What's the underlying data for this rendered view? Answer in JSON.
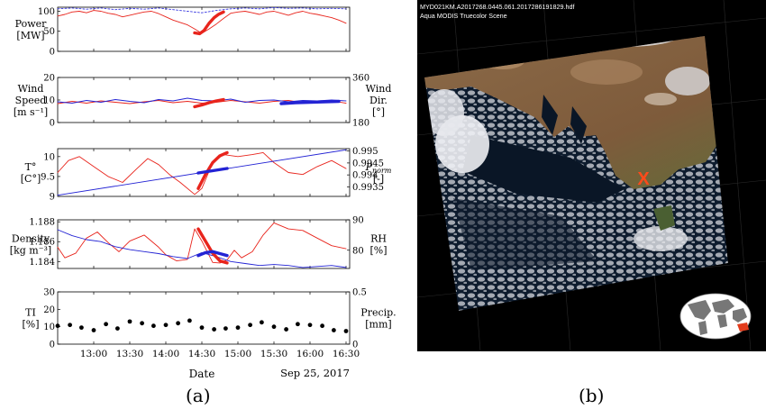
{
  "figure": {
    "caption_a": "(a)",
    "caption_b": "(b)"
  },
  "satellite": {
    "header_line1": "MYD021KM.A2017268.0445.061.2017286191829.hdf",
    "header_line2": "Aqua MODIS Truecolor Scene",
    "marker_label": "X",
    "colors": {
      "background": "#000000",
      "ocean": "#0a1626",
      "land": "#7a5a3c",
      "marker": "#ff4a1a"
    }
  },
  "chart_data": [
    {
      "type": "line",
      "id": "power",
      "ylabel": [
        "Power",
        "[MW]"
      ],
      "ylim": [
        0,
        110
      ],
      "yticks": [
        "0",
        "50",
        "100"
      ],
      "series": [
        {
          "style": "red",
          "x": [
            12.5,
            12.6,
            12.7,
            12.8,
            12.9,
            13,
            13.1,
            13.2,
            13.3,
            13.4,
            13.5,
            13.6,
            13.7,
            13.8,
            13.9,
            14,
            14.1,
            14.2,
            14.3,
            14.4,
            14.5,
            14.6,
            14.7,
            14.8,
            14.9,
            15,
            15.1,
            15.2,
            15.3,
            15.4,
            15.5,
            15.6,
            15.7,
            15.8,
            15.9,
            16,
            16.1,
            16.2,
            16.3,
            16.4,
            16.5
          ],
          "values": [
            88,
            92,
            98,
            100,
            96,
            102,
            100,
            95,
            92,
            86,
            90,
            94,
            98,
            100,
            94,
            86,
            78,
            72,
            66,
            56,
            45,
            56,
            68,
            82,
            95,
            98,
            100,
            96,
            92,
            98,
            100,
            95,
            90,
            96,
            100,
            95,
            92,
            88,
            84,
            78,
            70
          ]
        },
        {
          "style": "red-bold",
          "x": [
            14.4,
            14.47,
            14.53,
            14.6,
            14.67,
            14.73,
            14.8
          ],
          "values": [
            46,
            44,
            52,
            70,
            84,
            92,
            98
          ]
        },
        {
          "style": "blue-dotted",
          "x": [
            12.5,
            12.7,
            12.9,
            13.1,
            13.3,
            13.5,
            13.7,
            13.9,
            14.1,
            14.3,
            14.5,
            14.7,
            14.9,
            15.1,
            15.3,
            15.5,
            15.7,
            15.9,
            16.1,
            16.3,
            16.5
          ],
          "values": [
            106,
            108,
            105,
            108,
            104,
            107,
            105,
            108,
            104,
            100,
            96,
            102,
            106,
            108,
            106,
            109,
            107,
            108,
            106,
            107,
            106
          ]
        }
      ]
    },
    {
      "type": "line",
      "id": "wind",
      "ylabel": [
        "Wind",
        "Speed",
        "[m s⁻¹]"
      ],
      "ylabel_right": [
        "Wind",
        "Dir.",
        "[°]"
      ],
      "ylim": [
        0,
        20
      ],
      "ylim_right": [
        180,
        360
      ],
      "yticks": [
        "0",
        "10",
        "20"
      ],
      "yticks_right": [
        "180",
        "360"
      ],
      "series": [
        {
          "style": "red",
          "x": [
            12.5,
            12.7,
            12.9,
            13.1,
            13.3,
            13.5,
            13.7,
            13.9,
            14.1,
            14.3,
            14.5,
            14.7,
            14.9,
            15.1,
            15.3,
            15.5,
            15.7,
            15.9,
            16.1,
            16.3,
            16.5
          ],
          "values": [
            8.4,
            9.4,
            8.6,
            9.6,
            9.0,
            8.4,
            9.2,
            9.8,
            8.8,
            9.4,
            8.6,
            9.0,
            9.8,
            9.2,
            8.6,
            9.4,
            9.8,
            8.8,
            9.2,
            9.6,
            8.6
          ]
        },
        {
          "style": "blue",
          "x": [
            12.5,
            12.7,
            12.9,
            13.1,
            13.3,
            13.5,
            13.7,
            13.9,
            14.1,
            14.3,
            14.5,
            14.7,
            14.9,
            15.1,
            15.3,
            15.5,
            15.7,
            15.9,
            16.1,
            16.3,
            16.5
          ],
          "values": [
            9.2,
            8.6,
            9.8,
            9.0,
            10.2,
            9.4,
            8.8,
            10.2,
            9.6,
            10.8,
            9.8,
            9.6,
            10.4,
            9.0,
            9.8,
            10.0,
            9.2,
            9.8,
            9.6,
            10.0,
            9.6
          ]
        },
        {
          "style": "red-bold",
          "x": [
            14.4,
            14.5,
            14.6,
            14.7,
            14.8
          ],
          "values": [
            7.0,
            7.8,
            8.8,
            9.6,
            10.2
          ]
        },
        {
          "style": "blue-bold",
          "x": [
            15.6,
            15.8,
            16.0,
            16.2,
            16.4
          ],
          "values": [
            8.4,
            8.8,
            9.0,
            9.2,
            9.4
          ]
        }
      ]
    },
    {
      "type": "line",
      "id": "temperature",
      "ylabel": [
        "T°",
        "[C°]"
      ],
      "ylabel_right": [
        "P_norm",
        "[-]"
      ],
      "ylim": [
        9,
        10.2
      ],
      "ylim_right": [
        0.9931,
        0.9951
      ],
      "yticks": [
        "9",
        "9.5",
        "10"
      ],
      "yticks_right": [
        "0.9935",
        "0.994",
        "0.9945",
        "0.995"
      ],
      "series": [
        {
          "style": "red",
          "x": [
            12.5,
            12.65,
            12.8,
            13.0,
            13.2,
            13.4,
            13.6,
            13.75,
            13.9,
            14.05,
            14.2,
            14.4,
            14.5,
            14.65,
            14.8,
            15.0,
            15.2,
            15.35,
            15.5,
            15.7,
            15.9,
            16.1,
            16.3,
            16.5
          ],
          "values": [
            9.6,
            9.9,
            10.0,
            9.75,
            9.5,
            9.35,
            9.7,
            9.95,
            9.8,
            9.55,
            9.35,
            9.05,
            9.2,
            9.85,
            10.05,
            10.0,
            10.05,
            10.1,
            9.85,
            9.6,
            9.55,
            9.75,
            9.9,
            9.7
          ]
        },
        {
          "style": "red-bold",
          "x": [
            14.45,
            14.55,
            14.65,
            14.75,
            14.85
          ],
          "values": [
            9.2,
            9.55,
            9.85,
            10.02,
            10.1
          ]
        },
        {
          "style": "blue",
          "x": [
            12.5,
            16.5
          ],
          "values_right": [
            0.99315,
            0.99505
          ]
        },
        {
          "style": "blue-bold",
          "x": [
            14.45,
            14.85
          ],
          "values_right": [
            0.99408,
            0.99427
          ]
        }
      ]
    },
    {
      "type": "line",
      "id": "density",
      "ylabel": [
        "Density",
        "[kg m⁻³]"
      ],
      "ylabel_right": [
        "RH",
        "[%]"
      ],
      "ylim": [
        1.1833,
        1.1882
      ],
      "ylim_right": [
        74,
        90
      ],
      "yticks": [
        "1.184",
        "1.186",
        "1.188"
      ],
      "yticks_right": [
        "80",
        "90"
      ],
      "series": [
        {
          "style": "red",
          "x": [
            12.5,
            12.6,
            12.75,
            12.9,
            13.05,
            13.2,
            13.35,
            13.5,
            13.7,
            13.9,
            14.0,
            14.15,
            14.3,
            14.4,
            14.5,
            14.65,
            14.75,
            14.85,
            14.95,
            15.05,
            15.2,
            15.35,
            15.5,
            15.7,
            15.9,
            16.1,
            16.3,
            16.5
          ],
          "values_right": [
            81,
            77.5,
            79,
            84,
            86,
            82.5,
            79.5,
            83,
            85,
            81,
            78.5,
            76.5,
            77,
            87,
            83,
            76,
            75.8,
            76.8,
            80,
            77.5,
            79.5,
            85,
            89,
            87,
            86.5,
            84,
            81.5,
            80.5
          ]
        },
        {
          "style": "blue",
          "x": [
            12.5,
            12.7,
            12.9,
            13.1,
            13.3,
            13.5,
            13.7,
            13.9,
            14.1,
            14.3,
            14.5,
            14.7,
            14.9,
            15.1,
            15.3,
            15.5,
            15.7,
            15.9,
            16.1,
            16.3,
            16.5
          ],
          "values": [
            1.1872,
            1.1866,
            1.1862,
            1.186,
            1.1855,
            1.1852,
            1.185,
            1.1848,
            1.1845,
            1.1843,
            1.1849,
            1.1845,
            1.184,
            1.1838,
            1.1836,
            1.1837,
            1.1836,
            1.1834,
            1.1835,
            1.1836,
            1.1834
          ]
        },
        {
          "style": "red-bold",
          "x": [
            14.45,
            14.55,
            14.65,
            14.75,
            14.85
          ],
          "values_right": [
            87,
            83,
            79,
            76.5,
            75.8
          ]
        },
        {
          "style": "blue-bold",
          "x": [
            14.45,
            14.55,
            14.65,
            14.75,
            14.85
          ],
          "values": [
            1.1846,
            1.1849,
            1.185,
            1.1848,
            1.1846
          ]
        }
      ]
    },
    {
      "type": "scatter",
      "id": "ti",
      "ylabel": [
        "TI",
        "[%]"
      ],
      "ylabel_right": [
        "Precip.",
        "[mm]"
      ],
      "ylim": [
        0,
        30
      ],
      "ylim_right": [
        0,
        0.5
      ],
      "yticks": [
        "0",
        "10",
        "20",
        "30"
      ],
      "yticks_right": [
        "0",
        "0.5"
      ],
      "x": [
        12.5,
        12.67,
        12.83,
        13.0,
        13.17,
        13.33,
        13.5,
        13.67,
        13.83,
        14.0,
        14.17,
        14.33,
        14.5,
        14.67,
        14.83,
        15.0,
        15.17,
        15.33,
        15.5,
        15.67,
        15.83,
        16.0,
        16.17,
        16.33,
        16.5
      ],
      "values": [
        10.5,
        11.0,
        9.5,
        8.0,
        11.5,
        9.0,
        13.0,
        12.0,
        10.5,
        11.0,
        12.0,
        13.5,
        9.5,
        8.5,
        9.0,
        9.5,
        11.0,
        12.5,
        10.0,
        8.5,
        11.5,
        11.0,
        10.5,
        8.0,
        7.5
      ],
      "xticks": [
        "13:00",
        "13:30",
        "14:00",
        "14:30",
        "15:00",
        "15:30",
        "16:00",
        "16:30"
      ],
      "xtick_values": [
        13.0,
        13.5,
        14.0,
        14.5,
        15.0,
        15.5,
        16.0,
        16.5
      ],
      "xlabel": "Date",
      "date_label": "Sep 25, 2017",
      "xlim": [
        12.5,
        16.55
      ]
    }
  ]
}
